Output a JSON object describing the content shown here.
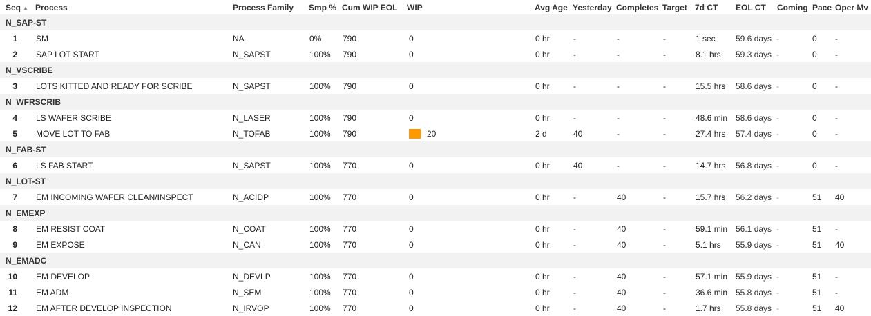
{
  "headers": {
    "seq": "Seq",
    "process": "Process",
    "family": "Process Family",
    "smp": "Smp %",
    "cum_wip": "Cum WIP EOL",
    "wip": "WIP",
    "avg_age": "Avg Age",
    "yesterday": "Yesterday",
    "completes": "Completes",
    "target": "Target",
    "ct7d": "7d CT",
    "eol_ct": "EOL CT",
    "coming": "Coming",
    "pace": "Pace",
    "oper_mv": "Oper Mv"
  },
  "sort_indicator": "▲",
  "wip_bar_color": "#ff9900",
  "rows": [
    {
      "group": "N_SAP-ST"
    },
    {
      "seq": "1",
      "process": "SM",
      "family": "NA",
      "smp": "0%",
      "cum": "790",
      "wip": "0",
      "age": "0 hr",
      "yest": "-",
      "comp": "-",
      "target": "-",
      "ct7": "1 sec",
      "eolct": "59.6 days",
      "coming": "-",
      "pace": "0",
      "oper": "-"
    },
    {
      "seq": "2",
      "process": "SAP LOT START",
      "family": "N_SAPST",
      "smp": "100%",
      "cum": "790",
      "wip": "0",
      "age": "0 hr",
      "yest": "-",
      "comp": "-",
      "target": "-",
      "ct7": "8.1 hrs",
      "eolct": "59.3 days",
      "coming": "-",
      "pace": "0",
      "oper": "-"
    },
    {
      "group": "N_VSCRIBE"
    },
    {
      "seq": "3",
      "process": "LOTS KITTED AND READY FOR SCRIBE",
      "family": "N_SAPST",
      "smp": "100%",
      "cum": "790",
      "wip": "0",
      "age": "0 hr",
      "yest": "-",
      "comp": "-",
      "target": "-",
      "ct7": "15.5 hrs",
      "eolct": "58.6 days",
      "coming": "-",
      "pace": "0",
      "oper": "-"
    },
    {
      "group": "N_WFRSCRIB"
    },
    {
      "seq": "4",
      "process": "LS WAFER SCRIBE",
      "family": "N_LASER",
      "smp": "100%",
      "cum": "790",
      "wip": "0",
      "age": "0 hr",
      "yest": "-",
      "comp": "-",
      "target": "-",
      "ct7": "48.6 min",
      "eolct": "58.6 days",
      "coming": "-",
      "pace": "0",
      "oper": "-"
    },
    {
      "seq": "5",
      "process": "MOVE LOT TO FAB",
      "family": "N_TOFAB",
      "smp": "100%",
      "cum": "790",
      "wip": "20",
      "bar": true,
      "age": "2 d",
      "yest": "40",
      "comp": "-",
      "target": "-",
      "ct7": "27.4 hrs",
      "eolct": "57.4 days",
      "coming": "-",
      "pace": "0",
      "oper": "-"
    },
    {
      "group": "N_FAB-ST"
    },
    {
      "seq": "6",
      "process": "LS FAB START",
      "family": "N_SAPST",
      "smp": "100%",
      "cum": "770",
      "wip": "0",
      "age": "0 hr",
      "yest": "40",
      "comp": "-",
      "target": "-",
      "ct7": "14.7 hrs",
      "eolct": "56.8 days",
      "coming": "-",
      "pace": "0",
      "oper": "-"
    },
    {
      "group": "N_LOT-ST"
    },
    {
      "seq": "7",
      "process": "EM INCOMING WAFER CLEAN/INSPECT",
      "family": "N_ACIDP",
      "smp": "100%",
      "cum": "770",
      "wip": "0",
      "age": "0 hr",
      "yest": "-",
      "comp": "40",
      "target": "-",
      "ct7": "15.7 hrs",
      "eolct": "56.2 days",
      "coming": "-",
      "pace": "51",
      "oper": "40"
    },
    {
      "group": "N_EMEXP"
    },
    {
      "seq": "8",
      "process": "EM RESIST COAT",
      "family": "N_COAT",
      "smp": "100%",
      "cum": "770",
      "wip": "0",
      "age": "0 hr",
      "yest": "-",
      "comp": "40",
      "target": "-",
      "ct7": "59.1 min",
      "eolct": "56.1 days",
      "coming": "-",
      "pace": "51",
      "oper": "-"
    },
    {
      "seq": "9",
      "process": "EM EXPOSE",
      "family": "N_CAN",
      "smp": "100%",
      "cum": "770",
      "wip": "0",
      "age": "0 hr",
      "yest": "-",
      "comp": "40",
      "target": "-",
      "ct7": "5.1 hrs",
      "eolct": "55.9 days",
      "coming": "-",
      "pace": "51",
      "oper": "40"
    },
    {
      "group": "N_EMADC"
    },
    {
      "seq": "10",
      "process": "EM DEVELOP",
      "family": "N_DEVLP",
      "smp": "100%",
      "cum": "770",
      "wip": "0",
      "age": "0 hr",
      "yest": "-",
      "comp": "40",
      "target": "-",
      "ct7": "57.1 min",
      "eolct": "55.9 days",
      "coming": "-",
      "pace": "51",
      "oper": "-"
    },
    {
      "seq": "11",
      "process": "EM ADM",
      "family": "N_SEM",
      "smp": "100%",
      "cum": "770",
      "wip": "0",
      "age": "0 hr",
      "yest": "-",
      "comp": "40",
      "target": "-",
      "ct7": "36.6 min",
      "eolct": "55.8 days",
      "coming": "-",
      "pace": "51",
      "oper": "-"
    },
    {
      "seq": "12",
      "process": "EM AFTER DEVELOP INSPECTION",
      "family": "N_IRVOP",
      "smp": "100%",
      "cum": "770",
      "wip": "0",
      "age": "0 hr",
      "yest": "-",
      "comp": "40",
      "target": "-",
      "ct7": "1.7 hrs",
      "eolct": "55.8 days",
      "coming": "-",
      "pace": "51",
      "oper": "40"
    }
  ]
}
